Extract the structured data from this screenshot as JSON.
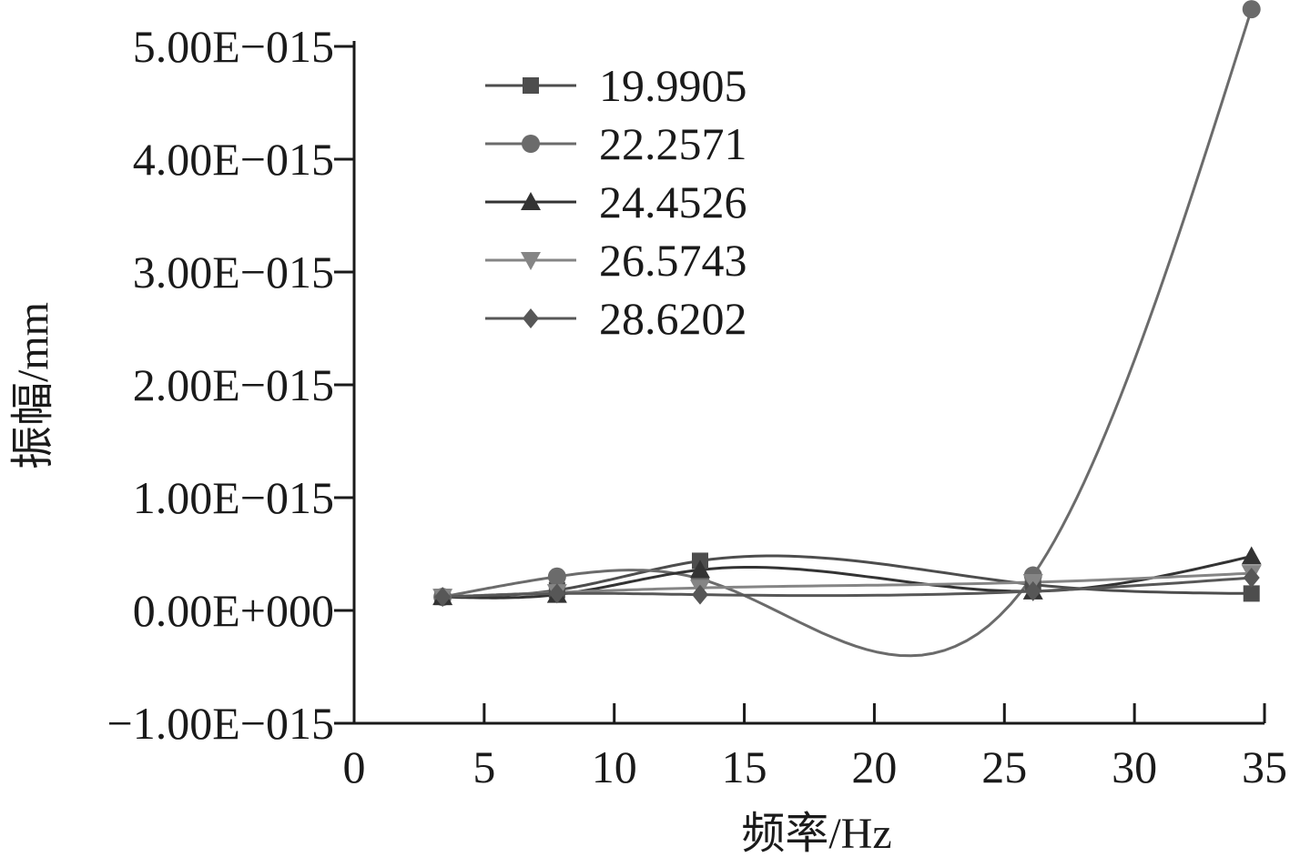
{
  "chart_data": {
    "type": "line",
    "xlabel": "频率/Hz",
    "ylabel": "振幅/mm",
    "xlim": [
      0,
      35
    ],
    "ylim": [
      -1e-15,
      5e-15
    ],
    "x_ticks": [
      "0",
      "5",
      "10",
      "15",
      "20",
      "25",
      "30",
      "35"
    ],
    "y_ticks": [
      "-1.00E-015",
      "0.00E+000",
      "1.00E-015",
      "2.00E-015",
      "3.00E-015",
      "4.00E-015",
      "5.00E-015"
    ],
    "x": [
      3.4,
      7.8,
      13.3,
      26.1,
      34.5
    ],
    "legend_position": "top-left",
    "grid": false,
    "series": [
      {
        "name": "19.9905",
        "marker": "square",
        "color": "#4d4d4d",
        "values": [
          1.2e-16,
          1.8e-16,
          4.4e-16,
          2.3e-16,
          1.5e-16
        ]
      },
      {
        "name": "22.2571",
        "marker": "circle",
        "color": "#6b6b6b",
        "values": [
          1.2e-16,
          3e-16,
          2.8e-16,
          3.1e-16,
          5.33e-15
        ]
      },
      {
        "name": "24.4526",
        "marker": "triangle-up",
        "color": "#333333",
        "values": [
          1.2e-16,
          1.4e-16,
          3.6e-16,
          1.7e-16,
          4.8e-16
        ]
      },
      {
        "name": "26.5743",
        "marker": "triangle-down",
        "color": "#858585",
        "values": [
          1.2e-16,
          1.6e-16,
          2e-16,
          2.5e-16,
          3.3e-16
        ]
      },
      {
        "name": "28.6202",
        "marker": "diamond",
        "color": "#575757",
        "values": [
          1.2e-16,
          1.5e-16,
          1.4e-16,
          1.7e-16,
          2.9e-16
        ]
      }
    ]
  }
}
